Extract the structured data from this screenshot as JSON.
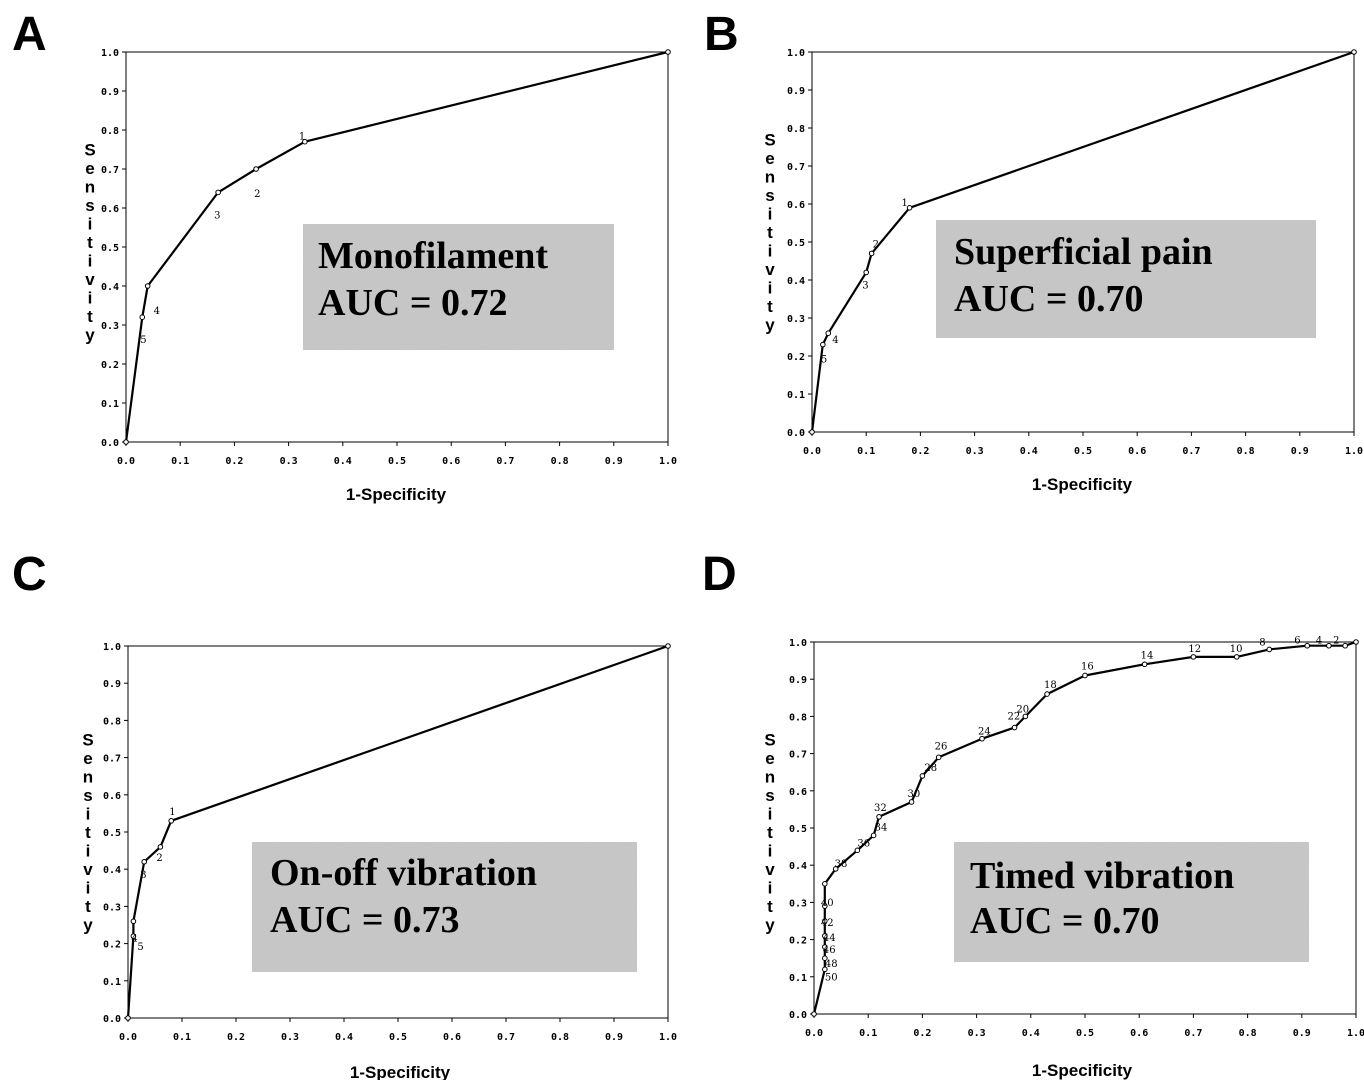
{
  "chart_data": [
    {
      "panel": "A",
      "type": "line",
      "xlabel": "1-Specificity",
      "ylabel": "Sensitivity",
      "xlim": [
        0,
        1
      ],
      "ylim": [
        0,
        1
      ],
      "xticks": [
        "0.0",
        "0.1",
        "0.2",
        "0.3",
        "0.4",
        "0.5",
        "0.6",
        "0.7",
        "0.8",
        "0.9",
        "1.0"
      ],
      "yticks": [
        "0.0",
        "0.1",
        "0.2",
        "0.3",
        "0.4",
        "0.5",
        "0.6",
        "0.7",
        "0.8",
        "0.9",
        "1.0"
      ],
      "points": [
        {
          "x": 0.0,
          "y": 0.0,
          "label": ""
        },
        {
          "x": 0.03,
          "y": 0.32,
          "label": "5"
        },
        {
          "x": 0.04,
          "y": 0.4,
          "label": "4"
        },
        {
          "x": 0.17,
          "y": 0.64,
          "label": "3"
        },
        {
          "x": 0.24,
          "y": 0.7,
          "label": "2"
        },
        {
          "x": 0.33,
          "y": 0.77,
          "label": "1"
        },
        {
          "x": 1.0,
          "y": 1.0,
          "label": ""
        }
      ],
      "annotation": [
        "Monofilament",
        "AUC = 0.72"
      ]
    },
    {
      "panel": "B",
      "type": "line",
      "xlabel": "1-Specificity",
      "ylabel": "Sensitivity",
      "xlim": [
        0,
        1
      ],
      "ylim": [
        0,
        1
      ],
      "xticks": [
        "0.0",
        "0.1",
        "0.2",
        "0.3",
        "0.4",
        "0.5",
        "0.6",
        "0.7",
        "0.8",
        "0.9",
        "1.0"
      ],
      "yticks": [
        "0.0",
        "0.1",
        "0.2",
        "0.3",
        "0.4",
        "0.5",
        "0.6",
        "0.7",
        "0.8",
        "0.9",
        "1.0"
      ],
      "points": [
        {
          "x": 0.0,
          "y": 0.0,
          "label": ""
        },
        {
          "x": 0.02,
          "y": 0.23,
          "label": "5"
        },
        {
          "x": 0.03,
          "y": 0.26,
          "label": "4"
        },
        {
          "x": 0.1,
          "y": 0.42,
          "label": "3"
        },
        {
          "x": 0.11,
          "y": 0.47,
          "label": "2"
        },
        {
          "x": 0.18,
          "y": 0.59,
          "label": "1"
        },
        {
          "x": 1.0,
          "y": 1.0,
          "label": ""
        }
      ],
      "annotation": [
        "Superficial pain",
        "AUC = 0.70"
      ]
    },
    {
      "panel": "C",
      "type": "line",
      "xlabel": "1-Specificity",
      "ylabel": "Sensitivity",
      "xlim": [
        0,
        1
      ],
      "ylim": [
        0,
        1
      ],
      "xticks": [
        "0.0",
        "0.1",
        "0.2",
        "0.3",
        "0.4",
        "0.5",
        "0.6",
        "0.7",
        "0.8",
        "0.9",
        "1.0"
      ],
      "yticks": [
        "0.0",
        "0.1",
        "0.2",
        "0.3",
        "0.4",
        "0.5",
        "0.6",
        "0.7",
        "0.8",
        "0.9",
        "1.0"
      ],
      "points": [
        {
          "x": 0.0,
          "y": 0.0,
          "label": ""
        },
        {
          "x": 0.01,
          "y": 0.22,
          "label": "5"
        },
        {
          "x": 0.01,
          "y": 0.26,
          "label": "4"
        },
        {
          "x": 0.03,
          "y": 0.42,
          "label": "3"
        },
        {
          "x": 0.06,
          "y": 0.46,
          "label": "2"
        },
        {
          "x": 0.08,
          "y": 0.53,
          "label": "1"
        },
        {
          "x": 1.0,
          "y": 1.0,
          "label": ""
        }
      ],
      "annotation": [
        "On-off  vibration",
        "AUC = 0.73"
      ]
    },
    {
      "panel": "D",
      "type": "line",
      "xlabel": "1-Specificity",
      "ylabel": "Sensitivity",
      "xlim": [
        0,
        1
      ],
      "ylim": [
        0,
        1
      ],
      "xticks": [
        "0.0",
        "0.1",
        "0.2",
        "0.3",
        "0.4",
        "0.5",
        "0.6",
        "0.7",
        "0.8",
        "0.9",
        "1.0"
      ],
      "yticks": [
        "0.0",
        "0.1",
        "0.2",
        "0.3",
        "0.4",
        "0.5",
        "0.6",
        "0.7",
        "0.8",
        "0.9",
        "1.0"
      ],
      "points": [
        {
          "x": 0.0,
          "y": 0.0,
          "label": ""
        },
        {
          "x": 0.02,
          "y": 0.12,
          "label": "50"
        },
        {
          "x": 0.02,
          "y": 0.15,
          "label": "48"
        },
        {
          "x": 0.02,
          "y": 0.18,
          "label": "46"
        },
        {
          "x": 0.02,
          "y": 0.21,
          "label": "44"
        },
        {
          "x": 0.02,
          "y": 0.25,
          "label": "42"
        },
        {
          "x": 0.02,
          "y": 0.29,
          "label": "40"
        },
        {
          "x": 0.02,
          "y": 0.35,
          "label": ""
        },
        {
          "x": 0.04,
          "y": 0.39,
          "label": "38"
        },
        {
          "x": 0.08,
          "y": 0.44,
          "label": "36"
        },
        {
          "x": 0.11,
          "y": 0.48,
          "label": "34"
        },
        {
          "x": 0.12,
          "y": 0.53,
          "label": "32"
        },
        {
          "x": 0.18,
          "y": 0.57,
          "label": "30"
        },
        {
          "x": 0.2,
          "y": 0.64,
          "label": "28"
        },
        {
          "x": 0.23,
          "y": 0.69,
          "label": "26"
        },
        {
          "x": 0.31,
          "y": 0.74,
          "label": "24"
        },
        {
          "x": 0.37,
          "y": 0.77,
          "label": "22"
        },
        {
          "x": 0.39,
          "y": 0.8,
          "label": "20"
        },
        {
          "x": 0.43,
          "y": 0.86,
          "label": "18"
        },
        {
          "x": 0.5,
          "y": 0.91,
          "label": "16"
        },
        {
          "x": 0.61,
          "y": 0.94,
          "label": "14"
        },
        {
          "x": 0.7,
          "y": 0.96,
          "label": "12"
        },
        {
          "x": 0.78,
          "y": 0.96,
          "label": "10"
        },
        {
          "x": 0.84,
          "y": 0.98,
          "label": "8"
        },
        {
          "x": 0.91,
          "y": 0.99,
          "label": "6"
        },
        {
          "x": 0.95,
          "y": 0.99,
          "label": "4"
        },
        {
          "x": 0.98,
          "y": 0.99,
          "label": "2"
        },
        {
          "x": 1.0,
          "y": 1.0,
          "label": ""
        }
      ],
      "annotation": [
        "Timed vibration",
        "AUC = 0.70"
      ]
    }
  ]
}
